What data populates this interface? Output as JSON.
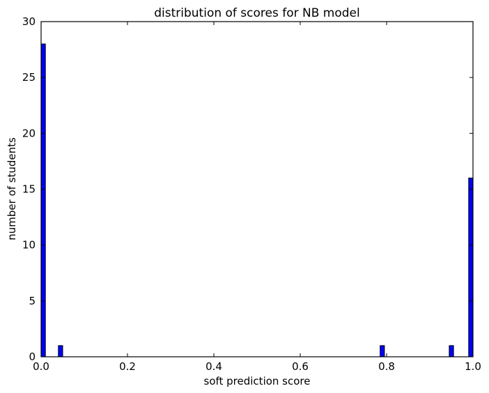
{
  "chart_data": {
    "type": "bar",
    "title": "distribution of scores for NB model",
    "xlabel": "soft prediction score",
    "ylabel": "number of students",
    "xlim": [
      0.0,
      1.0
    ],
    "ylim": [
      0,
      30
    ],
    "xticks": [
      "0.0",
      "0.2",
      "0.4",
      "0.6",
      "0.8",
      "1.0"
    ],
    "yticks": [
      "0",
      "5",
      "10",
      "15",
      "20",
      "25",
      "30"
    ],
    "bin_width": 0.01,
    "bins": [
      {
        "x_start": 0.0,
        "x_end": 0.01,
        "count": 28
      },
      {
        "x_start": 0.04,
        "x_end": 0.05,
        "count": 1
      },
      {
        "x_start": 0.785,
        "x_end": 0.795,
        "count": 1
      },
      {
        "x_start": 0.945,
        "x_end": 0.955,
        "count": 1
      },
      {
        "x_start": 0.99,
        "x_end": 1.0,
        "count": 16
      }
    ],
    "bar_color": "#0000ff",
    "grid": false,
    "legend": "none"
  }
}
